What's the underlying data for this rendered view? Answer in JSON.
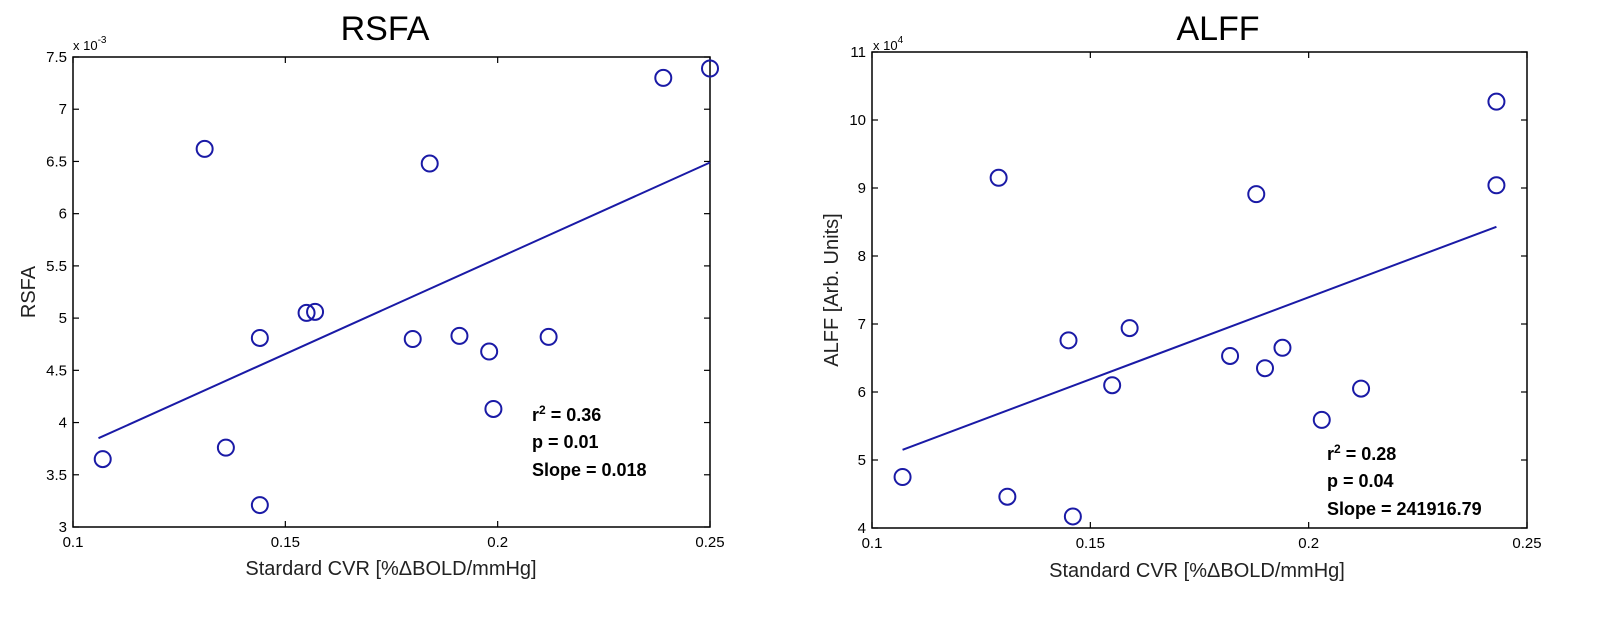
{
  "chart_data": [
    {
      "type": "scatter",
      "id": "rsfa",
      "title": "RSFA",
      "xlabel": "Stardard CVR [%ΔBOLD/mmHg]",
      "ylabel": "RSFA",
      "y_exponent_label": "x 10",
      "y_exponent_power": "-3",
      "xlim": [
        0.1,
        0.25
      ],
      "ylim": [
        3,
        7.5
      ],
      "x_ticks": [
        0.1,
        0.15,
        0.2,
        0.25
      ],
      "x_tick_labels": [
        "0.1",
        "0.15",
        "0.2",
        "0.25"
      ],
      "y_ticks": [
        3,
        3.5,
        4,
        4.5,
        5,
        5.5,
        6,
        6.5,
        7,
        7.5
      ],
      "y_tick_labels": [
        "3",
        "3.5",
        "4",
        "4.5",
        "5",
        "5.5",
        "6",
        "6.5",
        "7",
        "7.5"
      ],
      "x": [
        0.107,
        0.131,
        0.136,
        0.144,
        0.144,
        0.155,
        0.157,
        0.18,
        0.184,
        0.191,
        0.198,
        0.199,
        0.212,
        0.239,
        0.25
      ],
      "y": [
        3.65,
        6.62,
        3.76,
        4.81,
        3.21,
        5.05,
        5.06,
        4.8,
        6.48,
        4.83,
        4.68,
        4.13,
        4.82,
        7.3,
        7.39
      ],
      "fit_line": {
        "x": [
          0.106,
          0.25
        ],
        "y": [
          3.85,
          6.49
        ]
      },
      "stats": {
        "r2_label": "r",
        "r2_sup": "2",
        "r2_value": " = 0.36",
        "p": "p = 0.01",
        "slope": "Slope = 0.018"
      }
    },
    {
      "type": "scatter",
      "id": "alff",
      "title": "ALFF",
      "xlabel": "Standard CVR [%ΔBOLD/mmHg]",
      "ylabel": "ALFF [Arb. Units]",
      "y_exponent_label": "x 10",
      "y_exponent_power": "4",
      "xlim": [
        0.1,
        0.25
      ],
      "ylim": [
        4,
        11
      ],
      "x_ticks": [
        0.1,
        0.15,
        0.2,
        0.25
      ],
      "x_tick_labels": [
        "0.1",
        "0.15",
        "0.2",
        "0.25"
      ],
      "y_ticks": [
        4,
        5,
        6,
        7,
        8,
        9,
        10,
        11
      ],
      "y_tick_labels": [
        "4",
        "5",
        "6",
        "7",
        "8",
        "9",
        "10",
        "11"
      ],
      "x": [
        0.107,
        0.129,
        0.131,
        0.145,
        0.146,
        0.155,
        0.159,
        0.182,
        0.188,
        0.19,
        0.194,
        0.203,
        0.212,
        0.243,
        0.243
      ],
      "y": [
        4.75,
        9.15,
        4.46,
        6.76,
        4.17,
        6.1,
        6.94,
        6.53,
        8.91,
        6.35,
        6.65,
        5.59,
        6.05,
        10.27,
        9.04
      ],
      "fit_line": {
        "x": [
          0.107,
          0.243
        ],
        "y": [
          5.15,
          8.43
        ]
      },
      "stats": {
        "r2_label": "r",
        "r2_sup": "2",
        "r2_value": " = 0.28",
        "p": "p = 0.04",
        "slope": "Slope = 241916.79"
      }
    }
  ],
  "colors": {
    "marker": "#1a1aa6",
    "axis": "#000000"
  }
}
